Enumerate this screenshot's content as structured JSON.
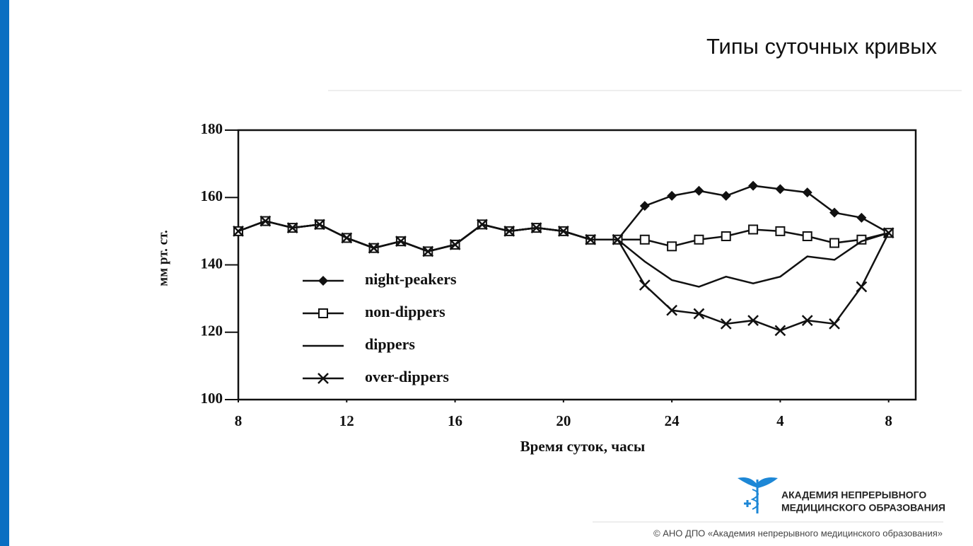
{
  "slide": {
    "title": "Типы суточных кривых",
    "logo_line1": "АКАДЕМИЯ НЕПРЕРЫВНОГО",
    "logo_line2": "МЕДИЦИНСКОГО ОБРАЗОВАНИЯ",
    "footer": "© АНО ДПО «Академия непрерывного медицинского образования»"
  },
  "chart_data": {
    "type": "line",
    "xlabel": "Время суток, часы",
    "ylabel": "мм рт. ст.",
    "x": [
      8,
      9,
      10,
      11,
      12,
      13,
      14,
      15,
      16,
      17,
      18,
      19,
      20,
      21,
      22,
      23,
      24,
      25,
      26,
      27,
      28,
      29,
      30,
      31,
      32
    ],
    "xlim": [
      8,
      33
    ],
    "xticks": [
      8,
      12,
      16,
      20,
      24,
      {
        "value": 28,
        "label": "4"
      },
      {
        "value": 32,
        "label": "8"
      }
    ],
    "ylim": [
      100,
      180
    ],
    "yticks": [
      100,
      120,
      140,
      160,
      180
    ],
    "series": [
      {
        "name": "night-peakers",
        "color": "#111111",
        "marker": "diamond",
        "values": [
          150,
          153,
          151,
          152,
          148,
          145,
          147,
          144,
          146,
          152,
          150,
          151,
          150,
          147.5,
          147.5,
          157.5,
          160.5,
          162,
          160.5,
          163.5,
          162.5,
          161.5,
          155.5,
          154,
          149.5
        ]
      },
      {
        "name": "non-dippers",
        "color": "#111111",
        "marker": "square",
        "values": [
          150,
          153,
          151,
          152,
          148,
          145,
          147,
          144,
          146,
          152,
          150,
          151,
          150,
          147.5,
          147.5,
          147.5,
          145.5,
          147.5,
          148.5,
          150.5,
          150,
          148.5,
          146.5,
          147.5,
          149.5
        ]
      },
      {
        "name": "dippers",
        "color": "#111111",
        "marker": "none",
        "values": [
          150,
          153,
          151,
          152,
          148,
          145,
          147,
          144,
          146,
          152,
          150,
          151,
          150,
          147.5,
          147.5,
          141,
          135.5,
          133.5,
          136.5,
          134.5,
          136.5,
          142.5,
          141.5,
          147,
          149.5
        ]
      },
      {
        "name": "over-dippers",
        "color": "#111111",
        "marker": "x",
        "values": [
          150,
          153,
          151,
          152,
          148,
          145,
          147,
          144,
          146,
          152,
          150,
          151,
          150,
          147.5,
          147.5,
          134,
          126.5,
          125.5,
          122.5,
          123.5,
          120.5,
          123.5,
          122.5,
          133.5,
          149.5
        ]
      }
    ]
  }
}
